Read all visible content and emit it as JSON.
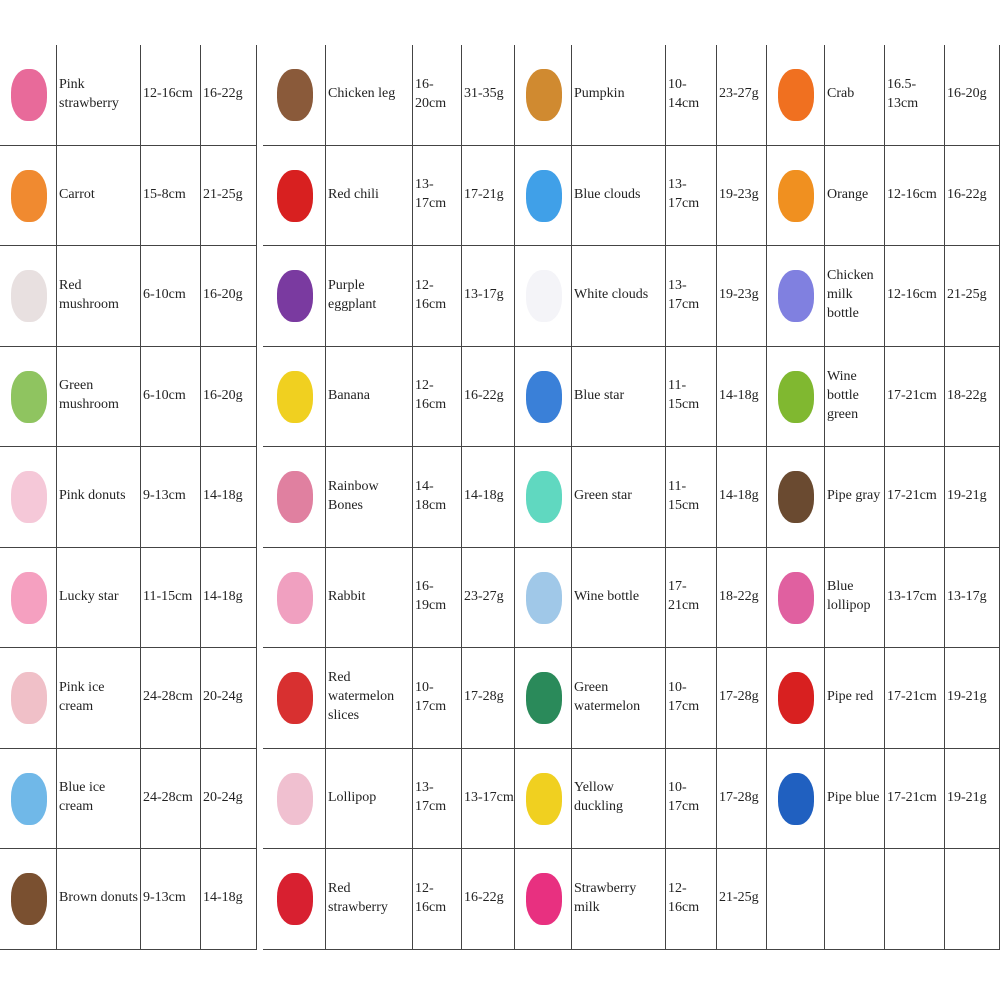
{
  "groups": [
    {
      "rows": [
        {
          "name": "Pink strawberry",
          "size": "12-16cm",
          "weight": "16-22g"
        },
        {
          "name": "Carrot",
          "size": "15-8cm",
          "weight": "21-25g"
        },
        {
          "name": "Red mushroom",
          "size": "6-10cm",
          "weight": "16-20g"
        },
        {
          "name": "Green mushroom",
          "size": "6-10cm",
          "weight": "16-20g"
        },
        {
          "name": "Pink donuts",
          "size": "9-13cm",
          "weight": "14-18g"
        },
        {
          "name": "Lucky star",
          "size": "11-15cm",
          "weight": "14-18g"
        },
        {
          "name": "Pink ice cream",
          "size": "24-28cm",
          "weight": "20-24g"
        },
        {
          "name": "Blue ice cream",
          "size": "24-28cm",
          "weight": "20-24g"
        },
        {
          "name": "Brown donuts",
          "size": "9-13cm",
          "weight": "14-18g"
        }
      ]
    },
    {
      "rows": [
        {
          "name": "Chicken leg",
          "size": "16-20cm",
          "weight": "31-35g"
        },
        {
          "name": "Red chili",
          "size": "13-17cm",
          "weight": "17-21g"
        },
        {
          "name": "Purple eggplant",
          "size": "12-16cm",
          "weight": "13-17g"
        },
        {
          "name": "Banana",
          "size": "12-16cm",
          "weight": "16-22g"
        },
        {
          "name": "Rainbow Bones",
          "size": "14-18cm",
          "weight": "14-18g"
        },
        {
          "name": "Rabbit",
          "size": "16-19cm",
          "weight": "23-27g"
        },
        {
          "name": "Red watermelon slices",
          "size": "10-17cm",
          "weight": "17-28g"
        },
        {
          "name": "Lollipop",
          "size": "13-17cm",
          "weight": "13-17cm"
        },
        {
          "name": "Red strawberry",
          "size": "12-16cm",
          "weight": "16-22g"
        }
      ]
    },
    {
      "rows": [
        {
          "name": "Pumpkin",
          "size": "10-14cm",
          "weight": "23-27g"
        },
        {
          "name": "Blue clouds",
          "size": "13-17cm",
          "weight": "19-23g"
        },
        {
          "name": "White clouds",
          "size": "13-17cm",
          "weight": "19-23g"
        },
        {
          "name": "Blue star",
          "size": "11-15cm",
          "weight": "14-18g"
        },
        {
          "name": "Green star",
          "size": "11-15cm",
          "weight": "14-18g"
        },
        {
          "name": "Wine bottle",
          "size": "17-21cm",
          "weight": "18-22g"
        },
        {
          "name": "Green watermelon",
          "size": "10-17cm",
          "weight": "17-28g"
        },
        {
          "name": "Yellow duckling",
          "size": "10-17cm",
          "weight": "17-28g"
        },
        {
          "name": "Strawberry milk",
          "size": "12-16cm",
          "weight": "21-25g"
        }
      ]
    },
    {
      "rows": [
        {
          "name": "Crab",
          "size": "16.5-13cm",
          "weight": "16-20g"
        },
        {
          "name": "Orange",
          "size": "12-16cm",
          "weight": "16-22g"
        },
        {
          "name": "Chicken milk bottle",
          "size": "12-16cm",
          "weight": "21-25g"
        },
        {
          "name": "Wine bottle green",
          "size": "17-21cm",
          "weight": "18-22g"
        },
        {
          "name": "Pipe gray",
          "size": "17-21cm",
          "weight": "19-21g"
        },
        {
          "name": "Blue lollipop",
          "size": "13-17cm",
          "weight": "13-17g"
        },
        {
          "name": "Pipe red",
          "size": "17-21cm",
          "weight": "19-21g"
        },
        {
          "name": "Pipe blue",
          "size": "17-21cm",
          "weight": "19-21g"
        }
      ]
    }
  ]
}
